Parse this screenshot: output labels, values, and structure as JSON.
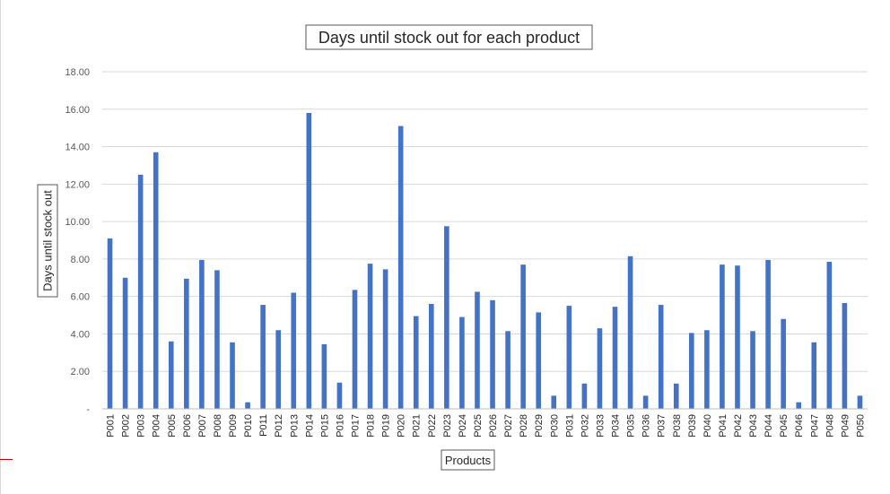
{
  "chart_data": {
    "type": "bar",
    "title": "Days until stock out for each product",
    "xlabel": "Products",
    "ylabel": "Days until stock out",
    "ylim": [
      0,
      18
    ],
    "yticks": [
      {
        "value": 0,
        "label": "-"
      },
      {
        "value": 2,
        "label": "2.00"
      },
      {
        "value": 4,
        "label": "4.00"
      },
      {
        "value": 6,
        "label": "6.00"
      },
      {
        "value": 8,
        "label": "8.00"
      },
      {
        "value": 10,
        "label": "10.00"
      },
      {
        "value": 12,
        "label": "12.00"
      },
      {
        "value": 14,
        "label": "14.00"
      },
      {
        "value": 16,
        "label": "16.00"
      },
      {
        "value": 18,
        "label": "18.00"
      }
    ],
    "grid": true,
    "bar_color": "#4472C4",
    "categories": [
      "P001",
      "P002",
      "P003",
      "P004",
      "P005",
      "P006",
      "P007",
      "P008",
      "P009",
      "P010",
      "P011",
      "P012",
      "P013",
      "P014",
      "P015",
      "P016",
      "P017",
      "P018",
      "P019",
      "P020",
      "P021",
      "P022",
      "P023",
      "P024",
      "P025",
      "P026",
      "P027",
      "P028",
      "P029",
      "P030",
      "P031",
      "P032",
      "P033",
      "P034",
      "P035",
      "P036",
      "P037",
      "P038",
      "P039",
      "P040",
      "P041",
      "P042",
      "P043",
      "P044",
      "P045",
      "P046",
      "P047",
      "P048",
      "P049",
      "P050"
    ],
    "values": [
      9.1,
      7.0,
      12.5,
      13.7,
      3.6,
      6.95,
      7.95,
      7.4,
      3.55,
      0.35,
      5.55,
      4.2,
      6.2,
      15.8,
      3.45,
      1.4,
      6.35,
      7.75,
      7.45,
      15.1,
      4.95,
      5.6,
      9.75,
      4.9,
      6.25,
      5.8,
      4.15,
      7.7,
      5.15,
      0.7,
      5.5,
      1.35,
      4.3,
      5.45,
      8.15,
      0.7,
      5.55,
      1.35,
      4.05,
      4.2,
      7.7,
      7.65,
      4.15,
      7.95,
      4.8,
      0.35,
      3.55,
      7.85,
      5.65,
      0.7
    ]
  }
}
